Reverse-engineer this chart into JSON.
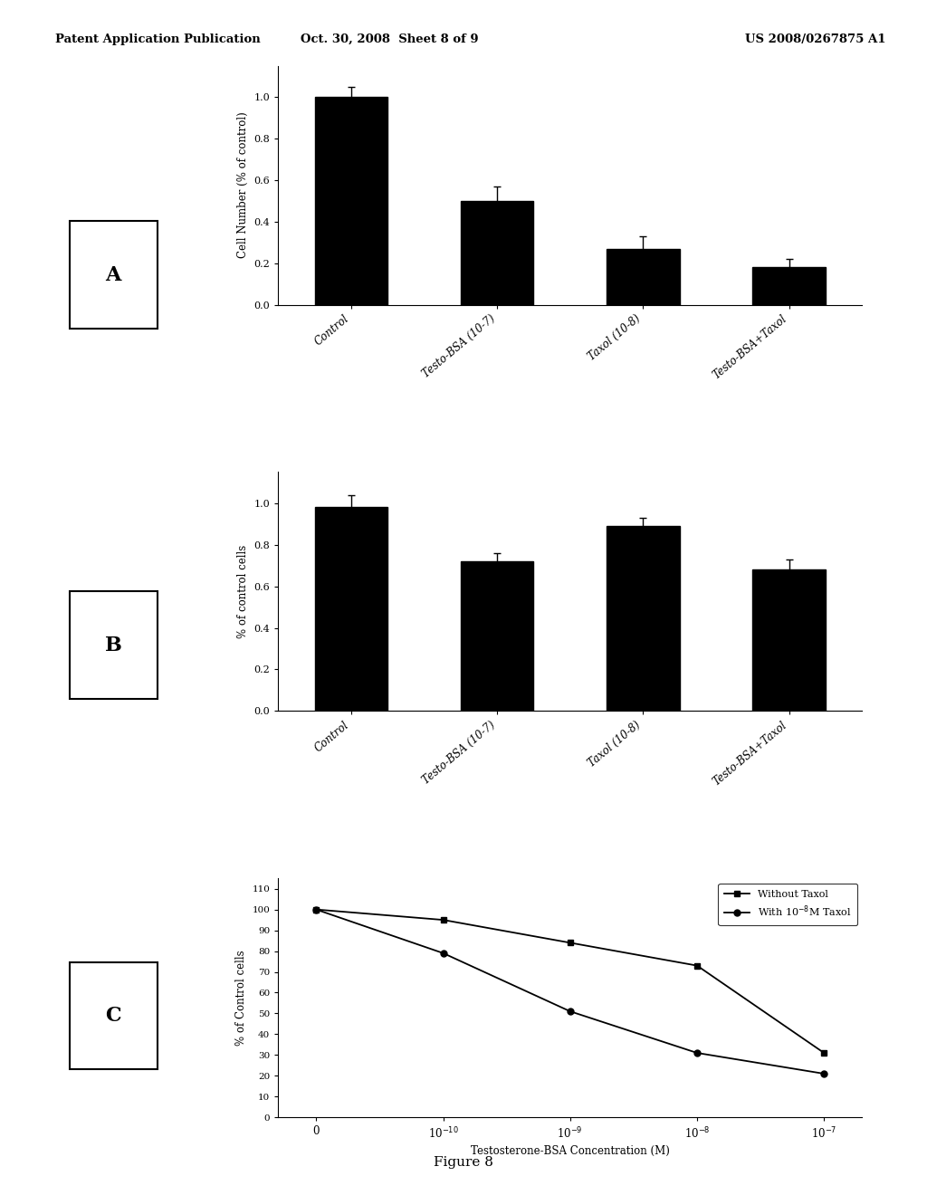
{
  "panel_A": {
    "categories": [
      "Control",
      "Testo-BSA (10-7)",
      "Taxol (10-8)",
      "Testo-BSA+Taxol"
    ],
    "values": [
      1.0,
      0.5,
      0.27,
      0.18
    ],
    "errors": [
      0.05,
      0.07,
      0.06,
      0.04
    ],
    "ylabel": "Cell Number (% of control)",
    "ylim": [
      0.0,
      1.15
    ],
    "yticks": [
      0.0,
      0.2,
      0.4,
      0.6,
      0.8,
      1.0
    ],
    "bar_color": "#000000",
    "label": "A"
  },
  "panel_B": {
    "categories": [
      "Control",
      "Testo-BSA (10-7)",
      "Taxol (10-8)",
      "Testo-BSA+Taxol"
    ],
    "values": [
      0.98,
      0.72,
      0.89,
      0.68
    ],
    "errors": [
      0.06,
      0.04,
      0.04,
      0.05
    ],
    "ylabel": "% of control cells",
    "ylim": [
      0.0,
      1.15
    ],
    "yticks": [
      0.0,
      0.2,
      0.4,
      0.6,
      0.8,
      1.0
    ],
    "bar_color": "#000000",
    "label": "B"
  },
  "panel_C": {
    "x_positions": [
      0,
      1,
      2,
      3,
      4
    ],
    "x_labels": [
      "0",
      "10$^{-10}$",
      "10$^{-9}$",
      "10$^{-8}$",
      "10$^{-7}$"
    ],
    "x_label": "Testosterone-BSA Concentration (M)",
    "ylabel": "% of Control cells",
    "ylim": [
      0,
      115
    ],
    "yticks": [
      0,
      10,
      20,
      30,
      40,
      50,
      60,
      70,
      80,
      90,
      100,
      110
    ],
    "without_taxol": [
      100,
      95,
      84,
      73,
      31
    ],
    "with_taxol": [
      100,
      79,
      51,
      31,
      21
    ],
    "legend_without": "Without Taxol",
    "legend_with": "With 10$^{-8}$M Taxol",
    "label": "C"
  },
  "header_left": "Patent Application Publication",
  "header_mid": "Oct. 30, 2008  Sheet 8 of 9",
  "header_right": "US 2008/0267875 A1",
  "figure_label": "Figure 8",
  "background_color": "#ffffff"
}
